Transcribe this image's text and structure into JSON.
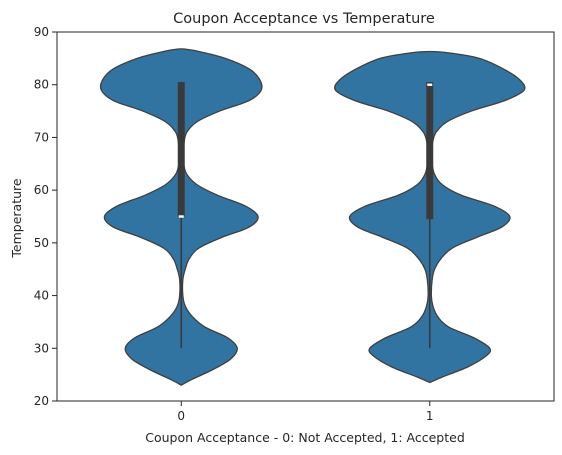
{
  "chart_data": {
    "type": "violin",
    "title": "Coupon Acceptance vs Temperature",
    "xlabel": "Coupon Acceptance - 0: Not Accepted, 1: Accepted",
    "ylabel": "Temperature",
    "categories": [
      "0",
      "1"
    ],
    "ylim": [
      20,
      90
    ],
    "yticks": [
      20,
      30,
      40,
      50,
      60,
      70,
      80,
      90
    ],
    "grid": false,
    "colors": {
      "fill": "#3274a1",
      "edge": "#3f3f3f",
      "box": "#3a3a3a",
      "median": "#ffffff"
    },
    "violins": [
      {
        "category": "0",
        "profile": [
          [
            23.0,
            0.0
          ],
          [
            24.0,
            0.12
          ],
          [
            26.0,
            0.4
          ],
          [
            28.0,
            0.62
          ],
          [
            30.0,
            0.7
          ],
          [
            32.0,
            0.58
          ],
          [
            34.0,
            0.3
          ],
          [
            36.0,
            0.14
          ],
          [
            38.0,
            0.05
          ],
          [
            40.0,
            0.02
          ],
          [
            43.0,
            0.02
          ],
          [
            45.0,
            0.05
          ],
          [
            47.0,
            0.1
          ],
          [
            49.0,
            0.22
          ],
          [
            51.0,
            0.5
          ],
          [
            53.0,
            0.85
          ],
          [
            55.0,
            0.96
          ],
          [
            57.0,
            0.8
          ],
          [
            59.0,
            0.46
          ],
          [
            61.0,
            0.2
          ],
          [
            63.0,
            0.07
          ],
          [
            65.0,
            0.03
          ],
          [
            67.0,
            0.025
          ],
          [
            69.0,
            0.035
          ],
          [
            71.0,
            0.07
          ],
          [
            73.0,
            0.2
          ],
          [
            75.0,
            0.48
          ],
          [
            77.0,
            0.85
          ],
          [
            79.0,
            1.0
          ],
          [
            81.0,
            0.98
          ],
          [
            83.0,
            0.85
          ],
          [
            85.0,
            0.55
          ],
          [
            86.3,
            0.22
          ],
          [
            86.8,
            0.0
          ]
        ],
        "whisker": [
          30,
          80.5
        ],
        "q1": 55,
        "median": 55,
        "q3": 80.5
      },
      {
        "category": "1",
        "profile": [
          [
            23.5,
            0.0
          ],
          [
            24.5,
            0.15
          ],
          [
            26.5,
            0.48
          ],
          [
            28.5,
            0.7
          ],
          [
            30.0,
            0.75
          ],
          [
            32.0,
            0.55
          ],
          [
            34.0,
            0.24
          ],
          [
            36.0,
            0.1
          ],
          [
            38.0,
            0.04
          ],
          [
            40.0,
            0.02
          ],
          [
            43.0,
            0.03
          ],
          [
            45.0,
            0.06
          ],
          [
            47.0,
            0.14
          ],
          [
            49.0,
            0.28
          ],
          [
            51.0,
            0.58
          ],
          [
            53.0,
            0.9
          ],
          [
            55.0,
            1.0
          ],
          [
            57.0,
            0.8
          ],
          [
            59.0,
            0.4
          ],
          [
            61.0,
            0.16
          ],
          [
            63.0,
            0.06
          ],
          [
            65.0,
            0.03
          ],
          [
            67.0,
            0.025
          ],
          [
            69.0,
            0.035
          ],
          [
            71.0,
            0.08
          ],
          [
            73.0,
            0.22
          ],
          [
            75.0,
            0.52
          ],
          [
            77.0,
            0.94
          ],
          [
            79.0,
            1.18
          ],
          [
            81.0,
            1.12
          ],
          [
            83.0,
            0.92
          ],
          [
            85.0,
            0.62
          ],
          [
            86.0,
            0.26
          ],
          [
            86.3,
            0.0
          ]
        ],
        "whisker": [
          30,
          80.5
        ],
        "q1": 54.5,
        "median": 80,
        "q3": 80.5
      }
    ]
  }
}
